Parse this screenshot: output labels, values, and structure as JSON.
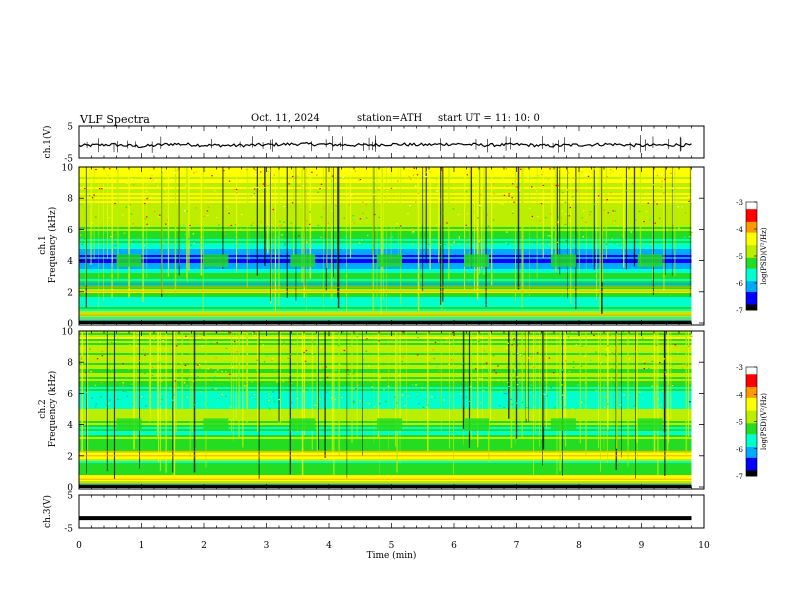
{
  "header": {
    "title": "VLF  Spectra",
    "date": "Oct. 11, 2024",
    "station": "station=ATH",
    "start_ut": "start  UT  =    11: 10: 0"
  },
  "chart_data": [
    {
      "type": "line",
      "name": "ch1-waveform",
      "ylabel": "ch.1(V)",
      "ylim": [
        -5,
        5
      ],
      "yticks": [
        "5",
        "-5"
      ],
      "xlim": [
        0,
        10
      ],
      "x_end": 9.8,
      "x": [
        0,
        0.5,
        1,
        1.5,
        2,
        2.5,
        3,
        3.5,
        4,
        4.5,
        5,
        5.5,
        6,
        6.5,
        7,
        7.5,
        8,
        8.5,
        9,
        9.5,
        9.8
      ],
      "y": [
        -1.2,
        -0.8,
        -1.4,
        -0.6,
        -1.0,
        -1.1,
        -0.9,
        -0.6,
        -0.8,
        -1.0,
        -0.7,
        -0.9,
        -0.6,
        -1.0,
        -0.8,
        -1.2,
        -0.9,
        -0.7,
        -1.1,
        -0.9,
        -1.0
      ]
    },
    {
      "type": "heatmap",
      "name": "ch1-spectrogram",
      "ylabel": "ch.1\nFrequency (kHz)",
      "ylim": [
        0,
        10
      ],
      "yticks": [
        "0",
        "2",
        "4",
        "6",
        "8",
        "10"
      ],
      "xlim": [
        0,
        10
      ],
      "x_end": 9.8,
      "zlim": [
        -7,
        -3
      ],
      "colorbar_label": "log(PSD)(V²/Hz)",
      "colorbar_ticks": [
        "-3",
        "-4",
        "-5",
        "-6",
        "-7"
      ],
      "intensity_profile_freq_khz": [
        0,
        0.5,
        1,
        1.5,
        2,
        2.5,
        3,
        3.5,
        4,
        4.5,
        5,
        5.5,
        6,
        6.5,
        7,
        7.5,
        8,
        8.5,
        9,
        9.5,
        10
      ],
      "intensity_profile_log_psd": [
        -6.8,
        -4.6,
        -5.6,
        -6.0,
        -4.3,
        -5.6,
        -5.2,
        -5.8,
        -6.3,
        -6.2,
        -5.8,
        -5.2,
        -5.0,
        -4.9,
        -4.8,
        -4.7,
        -4.6,
        -4.5,
        -4.4,
        -4.3,
        -4.3
      ]
    },
    {
      "type": "heatmap",
      "name": "ch2-spectrogram",
      "ylabel": "ch.2\nFrequency (kHz)",
      "ylim": [
        0,
        10
      ],
      "yticks": [
        "0",
        "2",
        "4",
        "6",
        "8",
        "10"
      ],
      "xlim": [
        0,
        10
      ],
      "x_end": 9.8,
      "zlim": [
        -7,
        -3
      ],
      "colorbar_label": "log(PSD)(V²/Hz)",
      "colorbar_ticks": [
        "-3",
        "-4",
        "-5",
        "-6",
        "-7"
      ],
      "intensity_profile_freq_khz": [
        0,
        0.5,
        1,
        1.5,
        2,
        2.5,
        3,
        3.5,
        4,
        4.5,
        5,
        5.5,
        6,
        6.5,
        7,
        7.5,
        8,
        8.5,
        9,
        9.5,
        10
      ],
      "intensity_profile_log_psd": [
        -6.5,
        -4.2,
        -5.2,
        -5.4,
        -4.3,
        -5.4,
        -5.0,
        -5.6,
        -5.0,
        -4.4,
        -5.3,
        -5.7,
        -5.6,
        -5.3,
        -5.1,
        -5.0,
        -5.0,
        -4.9,
        -4.9,
        -4.8,
        -4.8
      ]
    },
    {
      "type": "line",
      "name": "ch3-waveform",
      "ylabel": "ch.3(V)",
      "ylim": [
        -5,
        5
      ],
      "yticks": [
        "5",
        "-5"
      ],
      "xlim": [
        0,
        10
      ],
      "x_end": 9.8,
      "x": [
        0,
        9.8
      ],
      "y": [
        -2,
        -2
      ]
    }
  ],
  "xaxis": {
    "label": "Time  (min)",
    "ticks": [
      "0",
      "1",
      "2",
      "3",
      "4",
      "5",
      "6",
      "7",
      "8",
      "9",
      "10"
    ]
  },
  "colormap": [
    "#000000",
    "#0000ff",
    "#00aaff",
    "#00ffcc",
    "#22dd22",
    "#bbee00",
    "#ffff00",
    "#ff9900",
    "#ff0000",
    "#ffffff"
  ]
}
